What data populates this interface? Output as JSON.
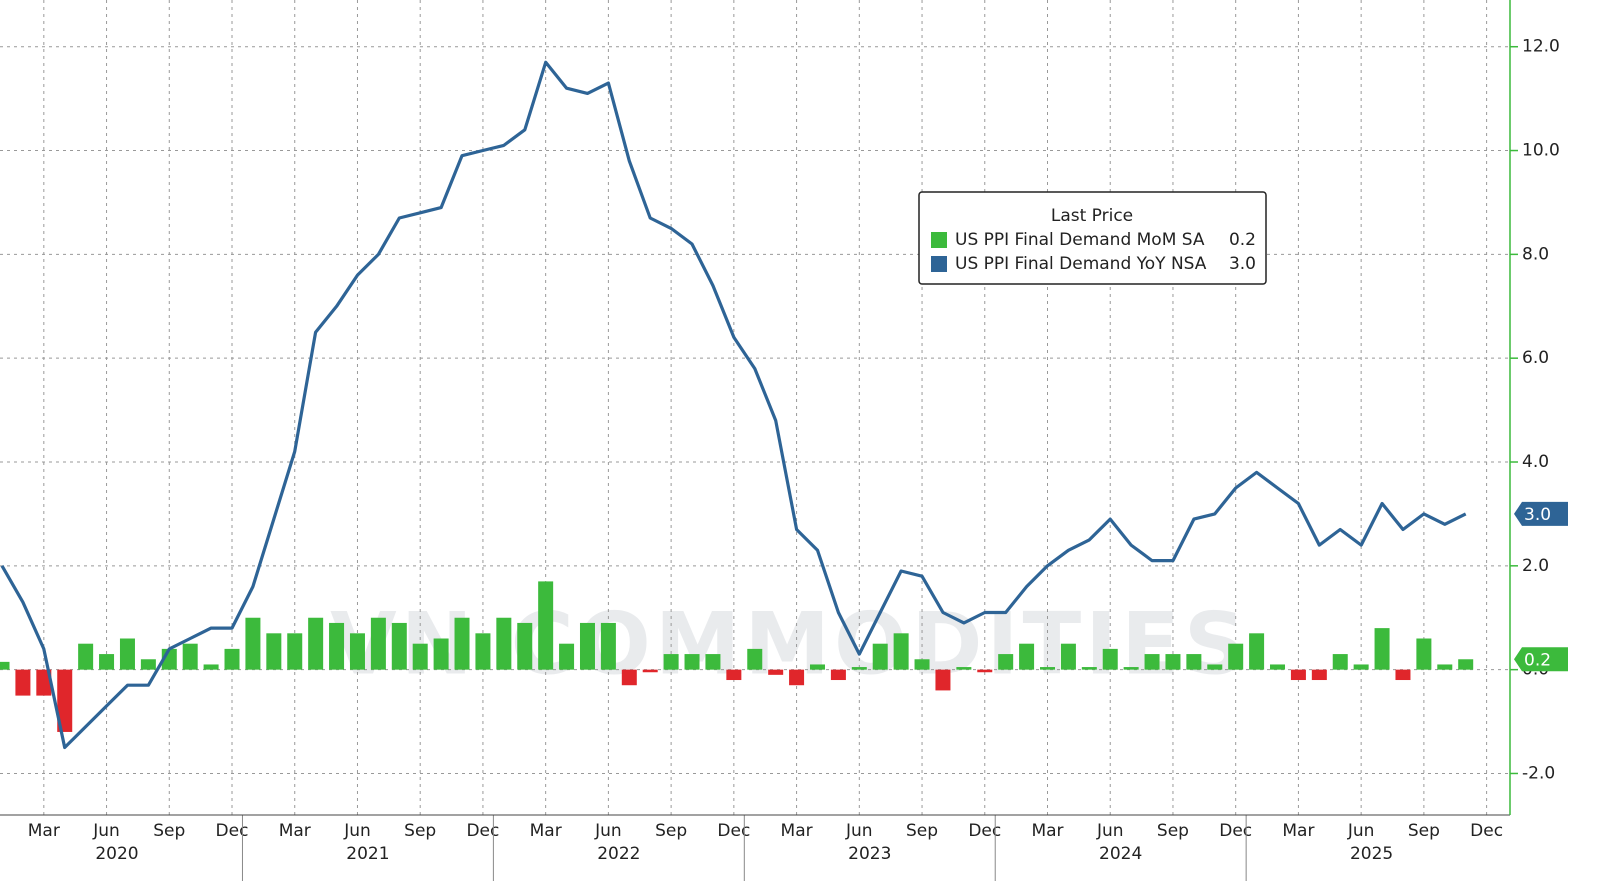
{
  "chart_data": {
    "type": "bar-line",
    "x": [
      "2020-01",
      "2020-02",
      "2020-03",
      "2020-04",
      "2020-05",
      "2020-06",
      "2020-07",
      "2020-08",
      "2020-09",
      "2020-10",
      "2020-11",
      "2020-12",
      "2021-01",
      "2021-02",
      "2021-03",
      "2021-04",
      "2021-05",
      "2021-06",
      "2021-07",
      "2021-08",
      "2021-09",
      "2021-10",
      "2021-11",
      "2021-12",
      "2022-01",
      "2022-02",
      "2022-03",
      "2022-04",
      "2022-05",
      "2022-06",
      "2022-07",
      "2022-08",
      "2022-09",
      "2022-10",
      "2022-11",
      "2022-12",
      "2023-01",
      "2023-02",
      "2023-03",
      "2023-04",
      "2023-05",
      "2023-06",
      "2023-07",
      "2023-08",
      "2023-09",
      "2023-10",
      "2023-11",
      "2023-12",
      "2024-01",
      "2024-02",
      "2024-03",
      "2024-04",
      "2024-05",
      "2024-06",
      "2024-07",
      "2024-08",
      "2024-09",
      "2024-10",
      "2024-11",
      "2024-12",
      "2025-01",
      "2025-02",
      "2025-03",
      "2025-04",
      "2025-05",
      "2025-06",
      "2025-07",
      "2025-08",
      "2025-09",
      "2025-10",
      "2025-11"
    ],
    "series": [
      {
        "name": "US PPI Final Demand MoM SA",
        "type": "bar",
        "color": "#3cba3c",
        "negative_color": "#e0262b",
        "last_label": "0.2",
        "values": [
          0.15,
          -0.5,
          -0.5,
          -1.2,
          0.5,
          0.3,
          0.6,
          0.2,
          0.4,
          0.5,
          0.1,
          0.4,
          1.0,
          0.7,
          0.7,
          1.0,
          0.9,
          0.7,
          1.0,
          0.9,
          0.5,
          0.6,
          1.0,
          0.7,
          1.0,
          0.9,
          1.7,
          0.5,
          0.9,
          0.9,
          -0.3,
          -0.05,
          0.3,
          0.3,
          0.3,
          -0.2,
          0.4,
          -0.1,
          -0.3,
          0.1,
          -0.2,
          0.05,
          0.5,
          0.7,
          0.2,
          -0.4,
          0.05,
          -0.05,
          0.3,
          0.5,
          0.05,
          0.5,
          0.05,
          0.4,
          0.05,
          0.3,
          0.3,
          0.3,
          0.1,
          0.5,
          0.7,
          0.1,
          -0.2,
          -0.2,
          0.3,
          0.1,
          0.8,
          -0.2,
          0.6,
          0.1,
          0.2
        ]
      },
      {
        "name": "US PPI Final Demand YoY NSA",
        "type": "line",
        "color": "#2e6496",
        "last_label": "3.0",
        "values": [
          2.0,
          1.3,
          0.4,
          -1.5,
          -1.1,
          -0.7,
          -0.3,
          -0.3,
          0.4,
          0.6,
          0.8,
          0.8,
          1.6,
          2.9,
          4.2,
          6.5,
          7.0,
          7.6,
          8.0,
          8.7,
          8.8,
          8.9,
          9.9,
          10.0,
          10.1,
          10.4,
          11.7,
          11.2,
          11.1,
          11.3,
          9.8,
          8.7,
          8.5,
          8.2,
          7.4,
          6.4,
          5.8,
          4.8,
          2.7,
          2.3,
          1.1,
          0.3,
          1.1,
          1.9,
          1.8,
          1.1,
          0.9,
          1.1,
          1.1,
          1.6,
          2.0,
          2.3,
          2.5,
          2.9,
          2.4,
          2.1,
          2.1,
          2.9,
          3.0,
          3.5,
          3.8,
          3.5,
          3.2,
          2.4,
          2.7,
          2.4,
          3.2,
          2.7,
          3.0,
          2.8,
          3.0
        ]
      }
    ],
    "legend": {
      "title": "Last Price"
    },
    "watermark": "VN COMMODITIES",
    "ylim": [
      -2.8,
      12.9
    ],
    "yticks": [
      {
        "value": -2,
        "label": "-2.0"
      },
      {
        "value": 0,
        "label": "0.0"
      },
      {
        "value": 2,
        "label": "2.0"
      },
      {
        "value": 4,
        "label": "4.0"
      },
      {
        "value": 6,
        "label": "6.0"
      },
      {
        "value": 8,
        "label": "8.0"
      },
      {
        "value": 10,
        "label": "10.0"
      },
      {
        "value": 12,
        "label": "12.0"
      }
    ],
    "xticks": [
      {
        "value": "2020-03",
        "label": "Mar"
      },
      {
        "value": "2020-06",
        "label": "Jun"
      },
      {
        "value": "2020-09",
        "label": "Sep"
      },
      {
        "value": "2020-12",
        "label": "Dec"
      },
      {
        "value": "2021-03",
        "label": "Mar"
      },
      {
        "value": "2021-06",
        "label": "Jun"
      },
      {
        "value": "2021-09",
        "label": "Sep"
      },
      {
        "value": "2021-12",
        "label": "Dec"
      },
      {
        "value": "2022-03",
        "label": "Mar"
      },
      {
        "value": "2022-06",
        "label": "Jun"
      },
      {
        "value": "2022-09",
        "label": "Sep"
      },
      {
        "value": "2022-12",
        "label": "Dec"
      },
      {
        "value": "2023-03",
        "label": "Mar"
      },
      {
        "value": "2023-06",
        "label": "Jun"
      },
      {
        "value": "2023-09",
        "label": "Sep"
      },
      {
        "value": "2023-12",
        "label": "Dec"
      },
      {
        "value": "2024-03",
        "label": "Mar"
      },
      {
        "value": "2024-06",
        "label": "Jun"
      },
      {
        "value": "2024-09",
        "label": "Sep"
      },
      {
        "value": "2024-12",
        "label": "Dec"
      },
      {
        "value": "2025-03",
        "label": "Mar"
      },
      {
        "value": "2025-06",
        "label": "Jun"
      },
      {
        "value": "2025-09",
        "label": "Sep"
      },
      {
        "value": "2025-12",
        "label": "Dec"
      }
    ],
    "years": [
      "2020",
      "2021",
      "2022",
      "2023",
      "2024",
      "2025"
    ],
    "grid": true
  }
}
